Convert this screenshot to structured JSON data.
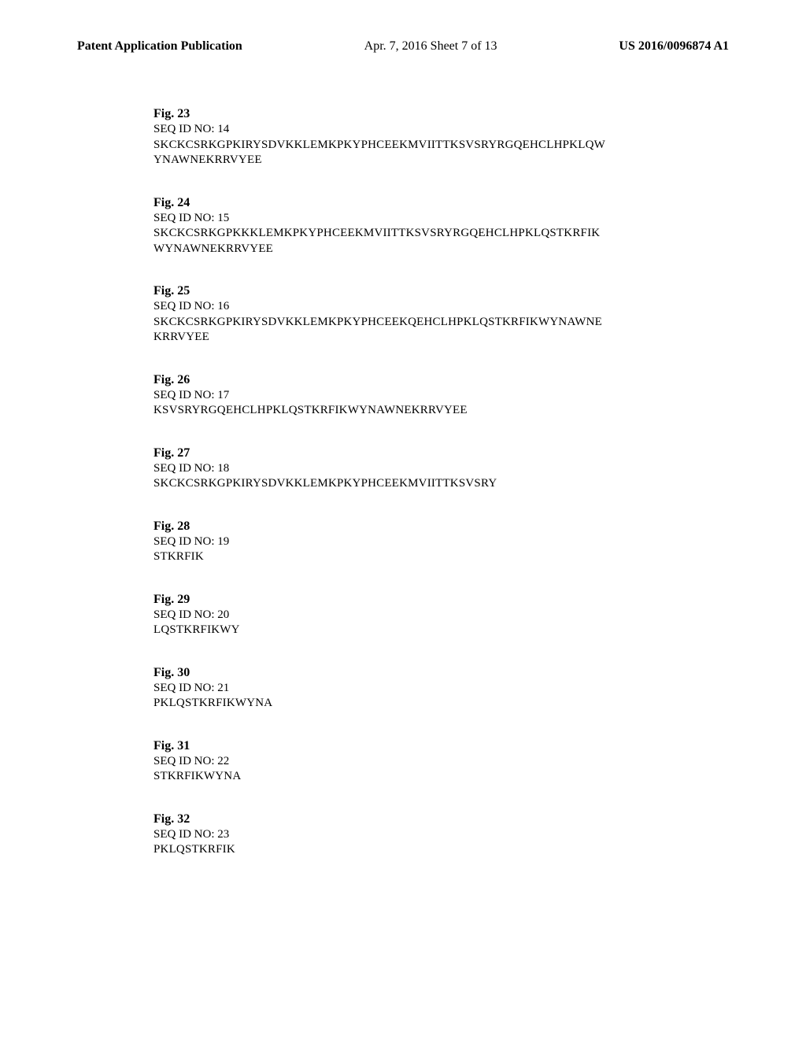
{
  "header": {
    "left": "Patent Application Publication",
    "center": "Apr. 7, 2016   Sheet 7 of 13",
    "right": "US 2016/0096874 A1"
  },
  "figures": [
    {
      "title": "Fig. 23",
      "seq_label": "SEQ ID NO: 14",
      "seq_lines": [
        "SKCKCSRKGPKIRYSDVKKLEMKPKYPHCEEKMVIITTKSVSRYRGQEHCLHPKLQW",
        "YNAWNEKRRVYEE"
      ]
    },
    {
      "title": "Fig. 24",
      "seq_label": "SEQ ID NO: 15",
      "seq_lines": [
        "SKCKCSRKGPKKKLEMKPKYPHCEEKMVIITTKSVSRYRGQEHCLHPKLQSTKRFIK",
        "WYNAWNEKRRVYEE"
      ]
    },
    {
      "title": "Fig. 25",
      "seq_label": "SEQ ID NO: 16",
      "seq_lines": [
        "SKCKCSRKGPKIRYSDVKKLEMKPKYPHCEEKQEHCLHPKLQSTKRFIKWYNAWNE",
        "KRRVYEE"
      ]
    },
    {
      "title": "Fig. 26",
      "seq_label": "SEQ ID NO: 17",
      "seq_lines": [
        "KSVSRYRGQEHCLHPKLQSTKRFIKWYNAWNEKRRVYEE"
      ]
    },
    {
      "title": "Fig. 27",
      "seq_label": "SEQ ID NO: 18",
      "seq_lines": [
        "SKCKCSRKGPKIRYSDVKKLEMKPKYPHCEEKMVIITTKSVSRY"
      ]
    },
    {
      "title": "Fig. 28",
      "seq_label": "SEQ ID NO: 19",
      "seq_lines": [
        "STKRFIK"
      ]
    },
    {
      "title": "Fig. 29",
      "seq_label": "SEQ ID NO: 20",
      "seq_lines": [
        "LQSTKRFIKWY"
      ]
    },
    {
      "title": "Fig. 30",
      "seq_label": "SEQ ID NO: 21",
      "seq_lines": [
        "PKLQSTKRFIKWYNA"
      ]
    },
    {
      "title": "Fig. 31",
      "seq_label": "SEQ ID NO: 22",
      "seq_lines": [
        "STKRFIKWYNA"
      ]
    },
    {
      "title": "Fig. 32",
      "seq_label": "SEQ ID NO: 23",
      "seq_lines": [
        "PKLQSTKRFIK"
      ]
    }
  ]
}
